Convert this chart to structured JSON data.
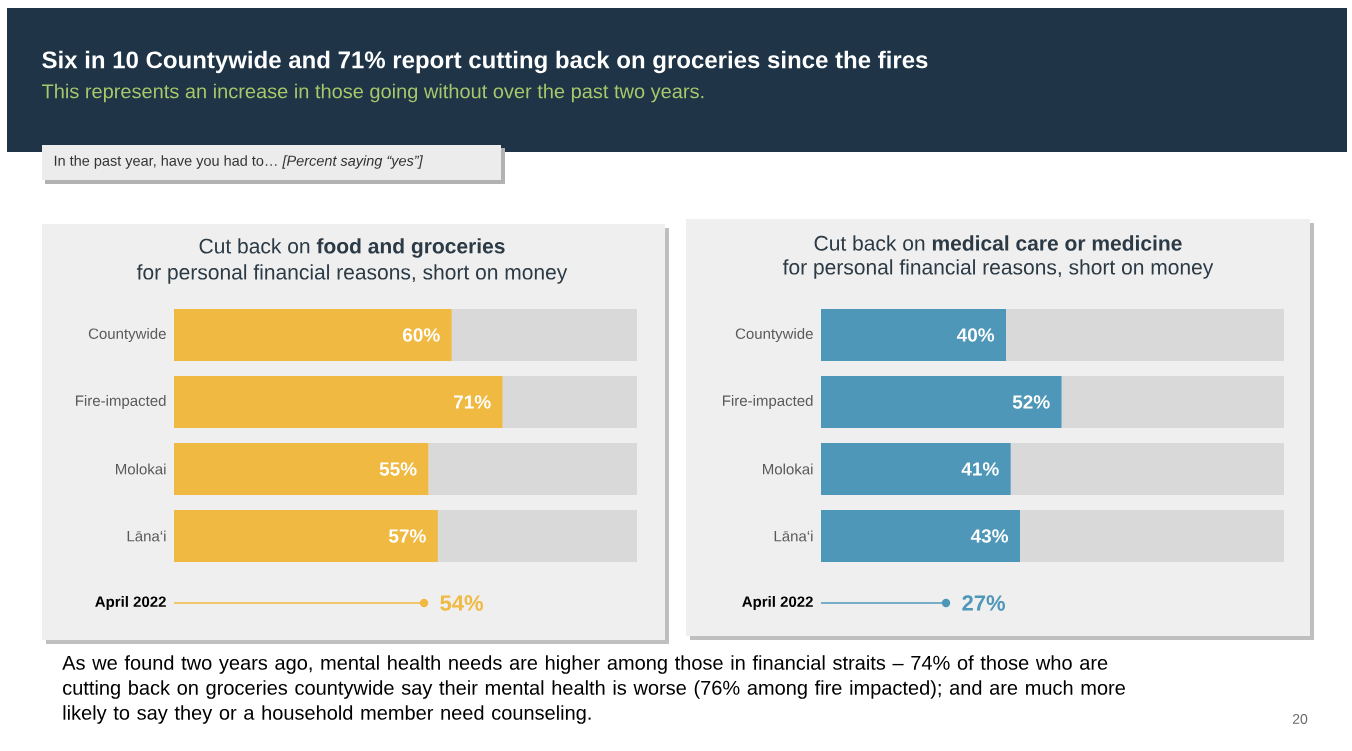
{
  "chart_data": [
    {
      "type": "bar",
      "orientation": "horizontal",
      "title": "Cut back on **food and groceries**",
      "subtitle": "for personal financial reasons, short on money",
      "categories": [
        "Countywide",
        "Fire-impacted",
        "Molokai",
        "Lāna‘i",
        "April 2022"
      ],
      "series": [
        {
          "color": "#f0b941",
          "values": [
            60,
            71,
            55,
            57,
            null
          ],
          "value_labels": [
            "60%",
            "71%",
            "55%",
            "57%",
            null
          ]
        },
        {
          "color": "#d9d9d9",
          "values": [
            40,
            29,
            45,
            43,
            null
          ]
        },
        {
          "type": "lollipop",
          "color": "#f0b941",
          "values": [
            null,
            null,
            null,
            null,
            54
          ],
          "value_labels": [
            null,
            null,
            null,
            null,
            "54%"
          ]
        }
      ],
      "xlim": [
        0,
        100
      ],
      "tick_labels": "y",
      "stacked": true,
      "annotations": [
        "Six in 10 Countywide and 71% report cutting back on groceries since the fires",
        "This represents an increase in those going without over the past two years.",
        "In the past year, have you had to… *[Percent saying “yes”]*",
        "As we found two years ago, mental health needs are higher among those in financial straits – 74% of those who are cutting back on groceries countywide say their mental health is worse (76% among fire impacted); and are much more likely to say they or a household member need counseling.",
        "20"
      ]
    },
    {
      "type": "bar",
      "orientation": "horizontal",
      "title": "Cut back on **medical care or medicine**",
      "subtitle": "for personal financial reasons, short on money",
      "categories": [
        "Countywide",
        "Fire-impacted",
        "Molokai",
        "Lāna‘i",
        "April 2022"
      ],
      "series": [
        {
          "color": "#4f97b8",
          "values": [
            40,
            52,
            41,
            43,
            null
          ],
          "value_labels": [
            "40%",
            "52%",
            "41%",
            "43%",
            null
          ]
        },
        {
          "color": "#d9d9d9",
          "values": [
            60,
            48,
            59,
            57,
            null
          ]
        },
        {
          "type": "lollipop",
          "color": "#4f97b8",
          "values": [
            null,
            null,
            null,
            null,
            27
          ],
          "value_labels": [
            null,
            null,
            null,
            null,
            "27%"
          ]
        }
      ],
      "xlim": [
        0,
        100
      ],
      "tick_labels": "y",
      "stacked": true
    }
  ]
}
